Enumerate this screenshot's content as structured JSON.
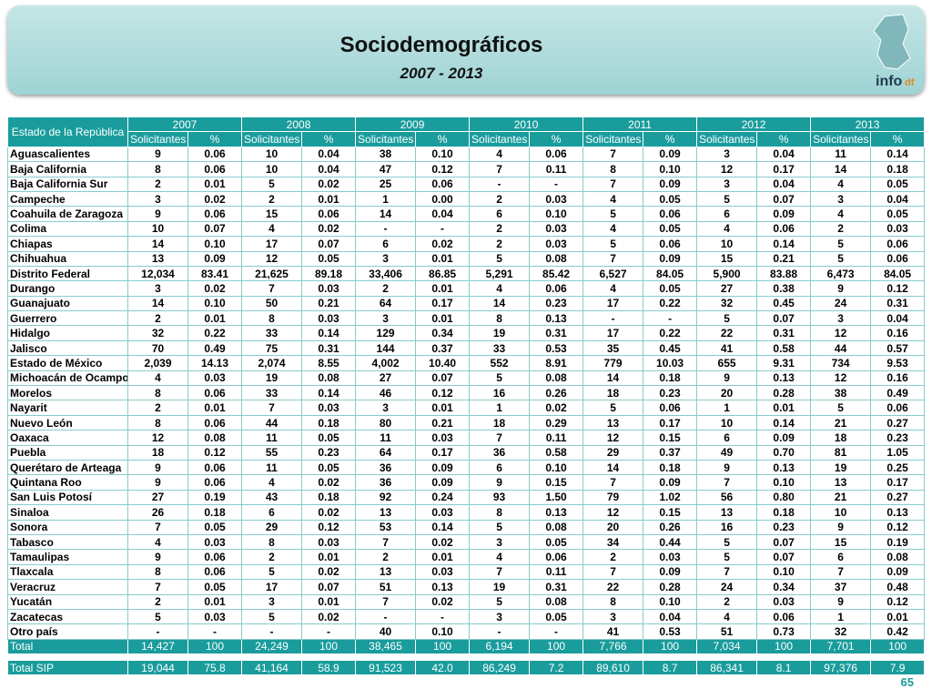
{
  "header": {
    "title": "Sociodemográficos",
    "subtitle": "2007 - 2013",
    "logo_main": "info",
    "logo_sub": "df"
  },
  "table": {
    "state_header": "Estado de la República",
    "years": [
      "2007",
      "2008",
      "2009",
      "2010",
      "2011",
      "2012",
      "2013"
    ],
    "sub_headers": [
      "Solicitantes",
      "%"
    ],
    "rows": [
      {
        "state": "Aguascalientes",
        "values": [
          "9",
          "0.06",
          "10",
          "0.04",
          "38",
          "0.10",
          "4",
          "0.06",
          "7",
          "0.09",
          "3",
          "0.04",
          "11",
          "0.14"
        ]
      },
      {
        "state": "Baja California",
        "values": [
          "8",
          "0.06",
          "10",
          "0.04",
          "47",
          "0.12",
          "7",
          "0.11",
          "8",
          "0.10",
          "12",
          "0.17",
          "14",
          "0.18"
        ]
      },
      {
        "state": "Baja California Sur",
        "values": [
          "2",
          "0.01",
          "5",
          "0.02",
          "25",
          "0.06",
          "-",
          "-",
          "7",
          "0.09",
          "3",
          "0.04",
          "4",
          "0.05"
        ]
      },
      {
        "state": "Campeche",
        "values": [
          "3",
          "0.02",
          "2",
          "0.01",
          "1",
          "0.00",
          "2",
          "0.03",
          "4",
          "0.05",
          "5",
          "0.07",
          "3",
          "0.04"
        ]
      },
      {
        "state": "Coahuila de Zaragoza",
        "values": [
          "9",
          "0.06",
          "15",
          "0.06",
          "14",
          "0.04",
          "6",
          "0.10",
          "5",
          "0.06",
          "6",
          "0.09",
          "4",
          "0.05"
        ]
      },
      {
        "state": "Colima",
        "values": [
          "10",
          "0.07",
          "4",
          "0.02",
          "-",
          "-",
          "2",
          "0.03",
          "4",
          "0.05",
          "4",
          "0.06",
          "2",
          "0.03"
        ]
      },
      {
        "state": "Chiapas",
        "values": [
          "14",
          "0.10",
          "17",
          "0.07",
          "6",
          "0.02",
          "2",
          "0.03",
          "5",
          "0.06",
          "10",
          "0.14",
          "5",
          "0.06"
        ]
      },
      {
        "state": "Chihuahua",
        "values": [
          "13",
          "0.09",
          "12",
          "0.05",
          "3",
          "0.01",
          "5",
          "0.08",
          "7",
          "0.09",
          "15",
          "0.21",
          "5",
          "0.06"
        ]
      },
      {
        "state": "Distrito Federal",
        "values": [
          "12,034",
          "83.41",
          "21,625",
          "89.18",
          "33,406",
          "86.85",
          "5,291",
          "85.42",
          "6,527",
          "84.05",
          "5,900",
          "83.88",
          "6,473",
          "84.05"
        ]
      },
      {
        "state": "Durango",
        "values": [
          "3",
          "0.02",
          "7",
          "0.03",
          "2",
          "0.01",
          "4",
          "0.06",
          "4",
          "0.05",
          "27",
          "0.38",
          "9",
          "0.12"
        ]
      },
      {
        "state": "Guanajuato",
        "values": [
          "14",
          "0.10",
          "50",
          "0.21",
          "64",
          "0.17",
          "14",
          "0.23",
          "17",
          "0.22",
          "32",
          "0.45",
          "24",
          "0.31"
        ]
      },
      {
        "state": "Guerrero",
        "values": [
          "2",
          "0.01",
          "8",
          "0.03",
          "3",
          "0.01",
          "8",
          "0.13",
          "-",
          "-",
          "5",
          "0.07",
          "3",
          "0.04"
        ]
      },
      {
        "state": "Hidalgo",
        "values": [
          "32",
          "0.22",
          "33",
          "0.14",
          "129",
          "0.34",
          "19",
          "0.31",
          "17",
          "0.22",
          "22",
          "0.31",
          "12",
          "0.16"
        ]
      },
      {
        "state": "Jalisco",
        "values": [
          "70",
          "0.49",
          "75",
          "0.31",
          "144",
          "0.37",
          "33",
          "0.53",
          "35",
          "0.45",
          "41",
          "0.58",
          "44",
          "0.57"
        ]
      },
      {
        "state": "Estado de México",
        "values": [
          "2,039",
          "14.13",
          "2,074",
          "8.55",
          "4,002",
          "10.40",
          "552",
          "8.91",
          "779",
          "10.03",
          "655",
          "9.31",
          "734",
          "9.53"
        ]
      },
      {
        "state": "Michoacán de Ocampo",
        "values": [
          "4",
          "0.03",
          "19",
          "0.08",
          "27",
          "0.07",
          "5",
          "0.08",
          "14",
          "0.18",
          "9",
          "0.13",
          "12",
          "0.16"
        ]
      },
      {
        "state": "Morelos",
        "values": [
          "8",
          "0.06",
          "33",
          "0.14",
          "46",
          "0.12",
          "16",
          "0.26",
          "18",
          "0.23",
          "20",
          "0.28",
          "38",
          "0.49"
        ]
      },
      {
        "state": "Nayarit",
        "values": [
          "2",
          "0.01",
          "7",
          "0.03",
          "3",
          "0.01",
          "1",
          "0.02",
          "5",
          "0.06",
          "1",
          "0.01",
          "5",
          "0.06"
        ]
      },
      {
        "state": "Nuevo León",
        "values": [
          "8",
          "0.06",
          "44",
          "0.18",
          "80",
          "0.21",
          "18",
          "0.29",
          "13",
          "0.17",
          "10",
          "0.14",
          "21",
          "0.27"
        ]
      },
      {
        "state": "Oaxaca",
        "values": [
          "12",
          "0.08",
          "11",
          "0.05",
          "11",
          "0.03",
          "7",
          "0.11",
          "12",
          "0.15",
          "6",
          "0.09",
          "18",
          "0.23"
        ]
      },
      {
        "state": "Puebla",
        "values": [
          "18",
          "0.12",
          "55",
          "0.23",
          "64",
          "0.17",
          "36",
          "0.58",
          "29",
          "0.37",
          "49",
          "0.70",
          "81",
          "1.05"
        ]
      },
      {
        "state": "Querétaro de Arteaga",
        "values": [
          "9",
          "0.06",
          "11",
          "0.05",
          "36",
          "0.09",
          "6",
          "0.10",
          "14",
          "0.18",
          "9",
          "0.13",
          "19",
          "0.25"
        ]
      },
      {
        "state": "Quintana Roo",
        "values": [
          "9",
          "0.06",
          "4",
          "0.02",
          "36",
          "0.09",
          "9",
          "0.15",
          "7",
          "0.09",
          "7",
          "0.10",
          "13",
          "0.17"
        ]
      },
      {
        "state": "San Luis Potosí",
        "values": [
          "27",
          "0.19",
          "43",
          "0.18",
          "92",
          "0.24",
          "93",
          "1.50",
          "79",
          "1.02",
          "56",
          "0.80",
          "21",
          "0.27"
        ]
      },
      {
        "state": "Sinaloa",
        "values": [
          "26",
          "0.18",
          "6",
          "0.02",
          "13",
          "0.03",
          "8",
          "0.13",
          "12",
          "0.15",
          "13",
          "0.18",
          "10",
          "0.13"
        ]
      },
      {
        "state": "Sonora",
        "values": [
          "7",
          "0.05",
          "29",
          "0.12",
          "53",
          "0.14",
          "5",
          "0.08",
          "20",
          "0.26",
          "16",
          "0.23",
          "9",
          "0.12"
        ]
      },
      {
        "state": "Tabasco",
        "values": [
          "4",
          "0.03",
          "8",
          "0.03",
          "7",
          "0.02",
          "3",
          "0.05",
          "34",
          "0.44",
          "5",
          "0.07",
          "15",
          "0.19"
        ]
      },
      {
        "state": "Tamaulipas",
        "values": [
          "9",
          "0.06",
          "2",
          "0.01",
          "2",
          "0.01",
          "4",
          "0.06",
          "2",
          "0.03",
          "5",
          "0.07",
          "6",
          "0.08"
        ]
      },
      {
        "state": "Tlaxcala",
        "values": [
          "8",
          "0.06",
          "5",
          "0.02",
          "13",
          "0.03",
          "7",
          "0.11",
          "7",
          "0.09",
          "7",
          "0.10",
          "7",
          "0.09"
        ]
      },
      {
        "state": "Veracruz",
        "values": [
          "7",
          "0.05",
          "17",
          "0.07",
          "51",
          "0.13",
          "19",
          "0.31",
          "22",
          "0.28",
          "24",
          "0.34",
          "37",
          "0.48"
        ]
      },
      {
        "state": "Yucatán",
        "values": [
          "2",
          "0.01",
          "3",
          "0.01",
          "7",
          "0.02",
          "5",
          "0.08",
          "8",
          "0.10",
          "2",
          "0.03",
          "9",
          "0.12"
        ]
      },
      {
        "state": "Zacatecas",
        "values": [
          "5",
          "0.03",
          "5",
          "0.02",
          "-",
          "-",
          "3",
          "0.05",
          "3",
          "0.04",
          "4",
          "0.06",
          "1",
          "0.01"
        ]
      },
      {
        "state": "Otro país",
        "values": [
          "-",
          "-",
          "-",
          "-",
          "40",
          "0.10",
          "-",
          "-",
          "41",
          "0.53",
          "51",
          "0.73",
          "32",
          "0.42"
        ]
      }
    ],
    "totals": [
      {
        "state": "Total",
        "values": [
          "14,427",
          "100",
          "24,249",
          "100",
          "38,465",
          "100",
          "6,194",
          "100",
          "7,766",
          "100",
          "7,034",
          "100",
          "7,701",
          "100"
        ]
      },
      {
        "state": "Total SIP",
        "values": [
          "19,044",
          "75.8",
          "41,164",
          "58.9",
          "91,523",
          "42.0",
          "86,249",
          "7.2",
          "89,610",
          "8.7",
          "86,341",
          "8.1",
          "97,376",
          "7.9"
        ]
      }
    ]
  },
  "footer": {
    "page_number": "65"
  }
}
